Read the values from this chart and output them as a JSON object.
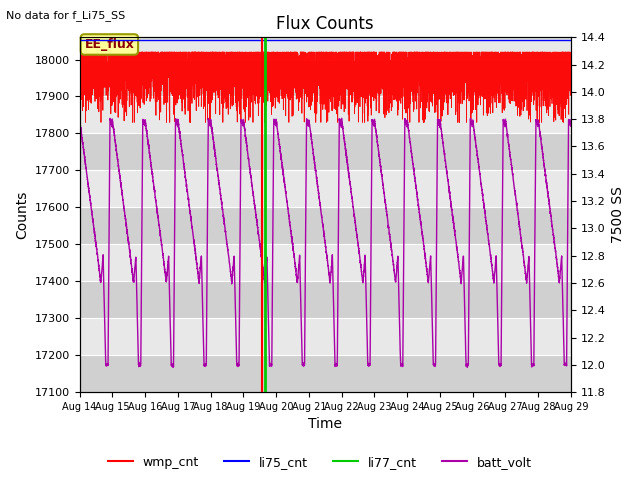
{
  "title": "Flux Counts",
  "top_left_text": "No data for f_Li75_SS",
  "annotation_text": "EE_flux",
  "xlabel": "Time",
  "ylabel_left": "Counts",
  "ylabel_right": "7500 SS",
  "ylim_left": [
    17100,
    18060
  ],
  "ylim_right": [
    11.8,
    14.4
  ],
  "x_tick_labels": [
    "Aug 14",
    "Aug 15",
    "Aug 16",
    "Aug 17",
    "Aug 18",
    "Aug 19",
    "Aug 20",
    "Aug 21",
    "Aug 22",
    "Aug 23",
    "Aug 24",
    "Aug 25",
    "Aug 26",
    "Aug 27",
    "Aug 28",
    "Aug 29"
  ],
  "yticks_left": [
    17100,
    17200,
    17300,
    17400,
    17500,
    17600,
    17700,
    17800,
    17900,
    18000
  ],
  "yticks_right": [
    11.8,
    12.0,
    12.2,
    12.4,
    12.6,
    12.8,
    13.0,
    13.2,
    13.4,
    13.6,
    13.8,
    14.0,
    14.2,
    14.4
  ],
  "wmp_color": "#ff0000",
  "li75_color": "#0000ff",
  "li77_color": "#00cc00",
  "batt_color": "#aa00aa",
  "bg_color_light": "#e8e8e8",
  "bg_color_dark": "#d0d0d0",
  "grid_color": "#ffffff",
  "legend_items": [
    "wmp_cnt",
    "li75_cnt",
    "li77_cnt",
    "batt_volt"
  ],
  "figsize": [
    6.4,
    4.8
  ],
  "dpi": 100
}
